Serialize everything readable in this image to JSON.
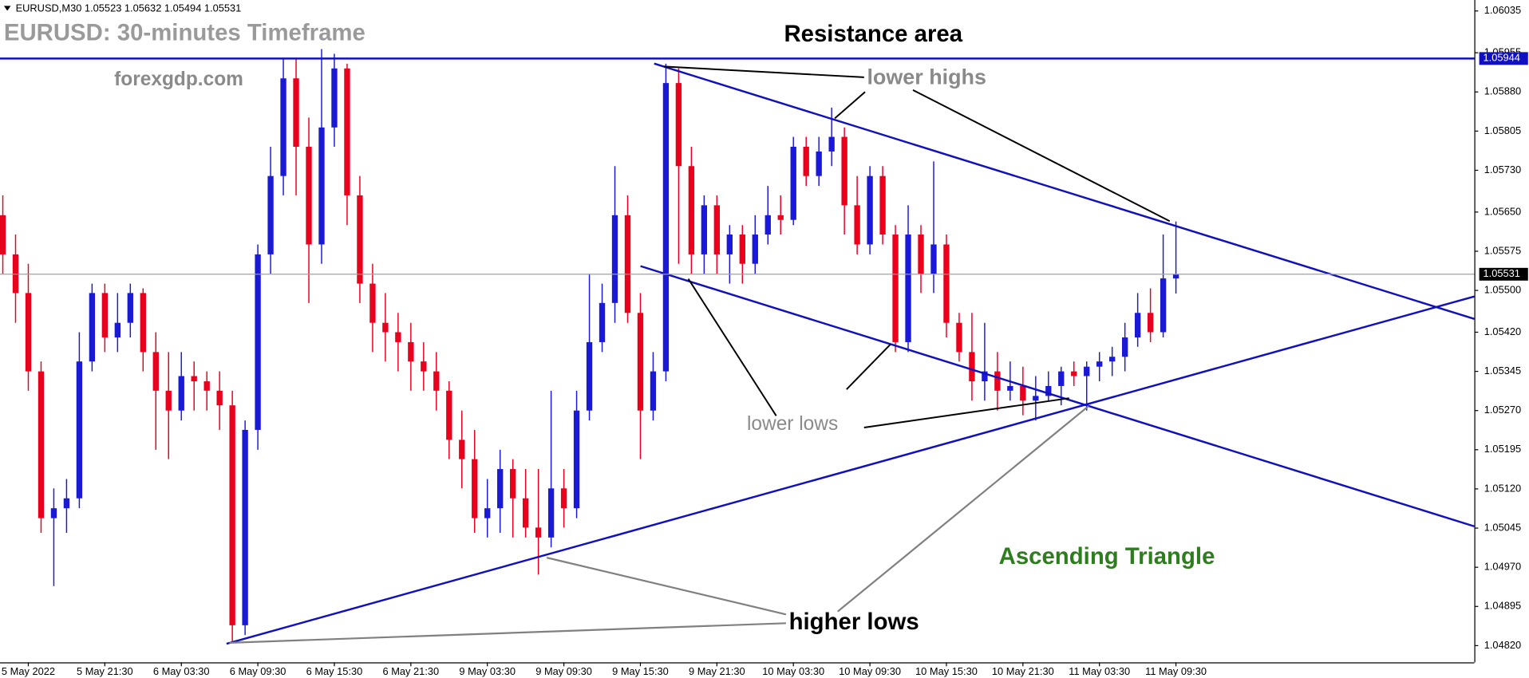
{
  "chart_data": {
    "type": "candlestick",
    "header": "EURUSD,M30  1.05523 1.05632 1.05494 1.05531",
    "title": "EURUSD: 30-minutes Timeframe",
    "subtitle": "forexgdp.com",
    "annotations": {
      "resistance": "Resistance area",
      "lower_highs": "lower highs",
      "lower_lows": "lower lows",
      "higher_lows": "higher lows",
      "pattern": "Ascending Triangle"
    },
    "up_color": "#1a1ad6",
    "down_color": "#e8001c",
    "ylim": [
      1.04758,
      1.06056
    ],
    "yticks": [
      1.06035,
      1.05955,
      {
        "value": 1.0588,
        "label": "1.05880"
      },
      1.05805,
      {
        "value": 1.0573,
        "label": "1.05730"
      },
      {
        "value": 1.0565,
        "label": "1.05650"
      },
      1.05575,
      {
        "value": 1.055,
        "label": "1.05500"
      },
      {
        "value": 1.0542,
        "label": "1.05420"
      },
      1.05345,
      {
        "value": 1.0527,
        "label": "1.05270"
      },
      1.05195,
      {
        "value": 1.0512,
        "label": "1.05120"
      },
      1.05045,
      {
        "value": 1.0497,
        "label": "1.04970"
      },
      1.04895,
      {
        "value": 1.0482,
        "label": "1.04820"
      }
    ],
    "price_lines": [
      {
        "value": 1.05944,
        "color": "#1010c0",
        "label_bg": "#1010c0"
      },
      {
        "value": 1.05531,
        "color": "#a0a0a0",
        "label_bg": "#000000"
      }
    ],
    "categories": [
      null,
      null,
      "5 May 2022",
      null,
      null,
      null,
      null,
      null,
      "5 May 21:30",
      null,
      null,
      null,
      null,
      null,
      "6 May 03:30",
      null,
      null,
      null,
      null,
      null,
      "6 May 09:30",
      null,
      null,
      null,
      null,
      null,
      "6 May 15:30",
      null,
      null,
      null,
      null,
      null,
      "6 May 21:30",
      null,
      null,
      null,
      null,
      null,
      "9 May 03:30",
      null,
      null,
      null,
      null,
      null,
      "9 May 09:30",
      null,
      null,
      null,
      null,
      null,
      "9 May 15:30",
      null,
      null,
      null,
      null,
      null,
      "9 May 21:30",
      null,
      null,
      null,
      null,
      null,
      "10 May 03:30",
      null,
      null,
      null,
      null,
      null,
      "10 May 09:30",
      null,
      null,
      null,
      null,
      null,
      "10 May 15:30",
      null,
      null,
      null,
      null,
      null,
      "10 May 21:30",
      null,
      null,
      null,
      null,
      null,
      "11 May 03:30",
      null,
      null,
      null,
      null,
      null,
      "11 May 09:30"
    ],
    "open": [
      1.05644,
      1.05569,
      1.05495,
      1.05345,
      1.05064,
      1.05083,
      1.05102,
      1.05364,
      1.05495,
      1.0541,
      1.05438,
      1.05495,
      1.05382,
      1.05308,
      1.0527,
      1.05336,
      1.05326,
      1.05308,
      1.0528,
      1.04859,
      1.05233,
      1.05569,
      1.05719,
      1.05906,
      1.05775,
      1.05588,
      1.05812,
      1.05925,
      1.05682,
      1.05513,
      1.05438,
      1.0542,
      1.05401,
      1.05364,
      1.05345,
      1.05308,
      1.05214,
      1.05177,
      1.05064,
      1.05083,
      1.05158,
      1.05102,
      1.05046,
      1.05027,
      1.05121,
      1.05083,
      1.0527,
      1.05401,
      1.05476,
      1.05644,
      1.05457,
      1.0527,
      1.05345,
      1.05897,
      1.05738,
      1.05569,
      1.05663,
      1.05569,
      1.05607,
      1.05551,
      1.05607,
      1.05644,
      1.05635,
      1.05775,
      1.05719,
      1.05766,
      1.05794,
      1.05663,
      1.05588,
      1.05719,
      1.05607,
      1.05401,
      1.05607,
      1.05532,
      1.05588,
      1.05438,
      1.05382,
      1.05326,
      1.05345,
      1.05308,
      1.05317,
      1.05289,
      1.05298,
      1.05317,
      1.05345,
      1.05336,
      1.05354,
      1.05364,
      1.05373,
      1.0541,
      1.05457,
      1.0542,
      1.05523
    ],
    "high": [
      1.05682,
      1.05607,
      1.05551,
      1.05364,
      1.05121,
      1.05139,
      1.0542,
      1.05513,
      1.05513,
      1.05495,
      1.05513,
      1.05504,
      1.0542,
      1.05382,
      1.05382,
      1.05364,
      1.05345,
      1.05345,
      1.05308,
      1.05251,
      1.05588,
      1.05775,
      1.05943,
      1.05943,
      1.05831,
      1.05962,
      1.05953,
      1.05934,
      1.05719,
      1.05551,
      1.05495,
      1.05457,
      1.05438,
      1.05401,
      1.05382,
      1.05326,
      1.0527,
      1.05233,
      1.05139,
      1.05195,
      1.05177,
      1.05158,
      1.05158,
      1.05308,
      1.05158,
      1.05308,
      1.05532,
      1.05513,
      1.05738,
      1.05682,
      1.05495,
      1.05382,
      1.05934,
      1.05925,
      1.05775,
      1.05682,
      1.05682,
      1.05625,
      1.05625,
      1.05644,
      1.057,
      1.05682,
      1.05794,
      1.05794,
      1.05794,
      1.0585,
      1.05812,
      1.05719,
      1.05738,
      1.05738,
      1.05625,
      1.05663,
      1.05625,
      1.05747,
      1.05607,
      1.05457,
      1.05457,
      1.05438,
      1.05382,
      1.05364,
      1.05354,
      1.05336,
      1.05345,
      1.05354,
      1.05364,
      1.05364,
      1.05382,
      1.05392,
      1.05438,
      1.05495,
      1.05504,
      1.05607,
      1.05632
    ],
    "low": [
      1.05532,
      1.05438,
      1.05308,
      1.05036,
      1.04934,
      1.05036,
      1.05083,
      1.05345,
      1.05382,
      1.05382,
      1.0541,
      1.05345,
      1.05195,
      1.05177,
      1.05251,
      1.0527,
      1.0527,
      1.05233,
      1.04825,
      1.0484,
      1.05195,
      1.05532,
      1.05682,
      1.05682,
      1.05476,
      1.05551,
      1.05775,
      1.05625,
      1.05476,
      1.05382,
      1.05364,
      1.05345,
      1.05308,
      1.05308,
      1.0527,
      1.05177,
      1.05121,
      1.05036,
      1.05027,
      1.05036,
      1.05027,
      1.05027,
      1.04956,
      1.05008,
      1.05046,
      1.05064,
      1.05251,
      1.05382,
      1.05438,
      1.05438,
      1.05177,
      1.05251,
      1.05326,
      1.05551,
      1.05532,
      1.05532,
      1.05532,
      1.05513,
      1.05513,
      1.05532,
      1.05588,
      1.05607,
      1.05625,
      1.057,
      1.057,
      1.05738,
      1.05607,
      1.05569,
      1.05569,
      1.05588,
      1.05382,
      1.05382,
      1.05495,
      1.05495,
      1.0541,
      1.05364,
      1.05289,
      1.05289,
      1.0527,
      1.05289,
      1.05261,
      1.05251,
      1.05289,
      1.0528,
      1.05317,
      1.0527,
      1.05326,
      1.05336,
      1.05345,
      1.05392,
      1.05401,
      1.0541,
      1.05494
    ],
    "close": [
      1.05569,
      1.05495,
      1.05345,
      1.05064,
      1.05083,
      1.05102,
      1.05364,
      1.05495,
      1.0541,
      1.05438,
      1.05495,
      1.05382,
      1.05308,
      1.0527,
      1.05336,
      1.05326,
      1.05308,
      1.0528,
      1.04859,
      1.05233,
      1.05569,
      1.05719,
      1.05906,
      1.05775,
      1.05588,
      1.05812,
      1.05925,
      1.05682,
      1.05513,
      1.05438,
      1.0542,
      1.05401,
      1.05364,
      1.05345,
      1.05308,
      1.05214,
      1.05177,
      1.05064,
      1.05083,
      1.05158,
      1.05102,
      1.05046,
      1.05027,
      1.05121,
      1.05083,
      1.0527,
      1.05401,
      1.05476,
      1.05644,
      1.05457,
      1.0527,
      1.05345,
      1.05897,
      1.05738,
      1.05569,
      1.05663,
      1.05569,
      1.05607,
      1.05551,
      1.05607,
      1.05644,
      1.05635,
      1.05775,
      1.05719,
      1.05766,
      1.05794,
      1.05663,
      1.05588,
      1.05719,
      1.05607,
      1.05401,
      1.05607,
      1.05532,
      1.05588,
      1.05438,
      1.05382,
      1.05326,
      1.05345,
      1.05308,
      1.05317,
      1.05289,
      1.05298,
      1.05317,
      1.05345,
      1.05336,
      1.05354,
      1.05364,
      1.05373,
      1.0541,
      1.05457,
      1.0542,
      1.05523,
      1.05531
    ]
  }
}
